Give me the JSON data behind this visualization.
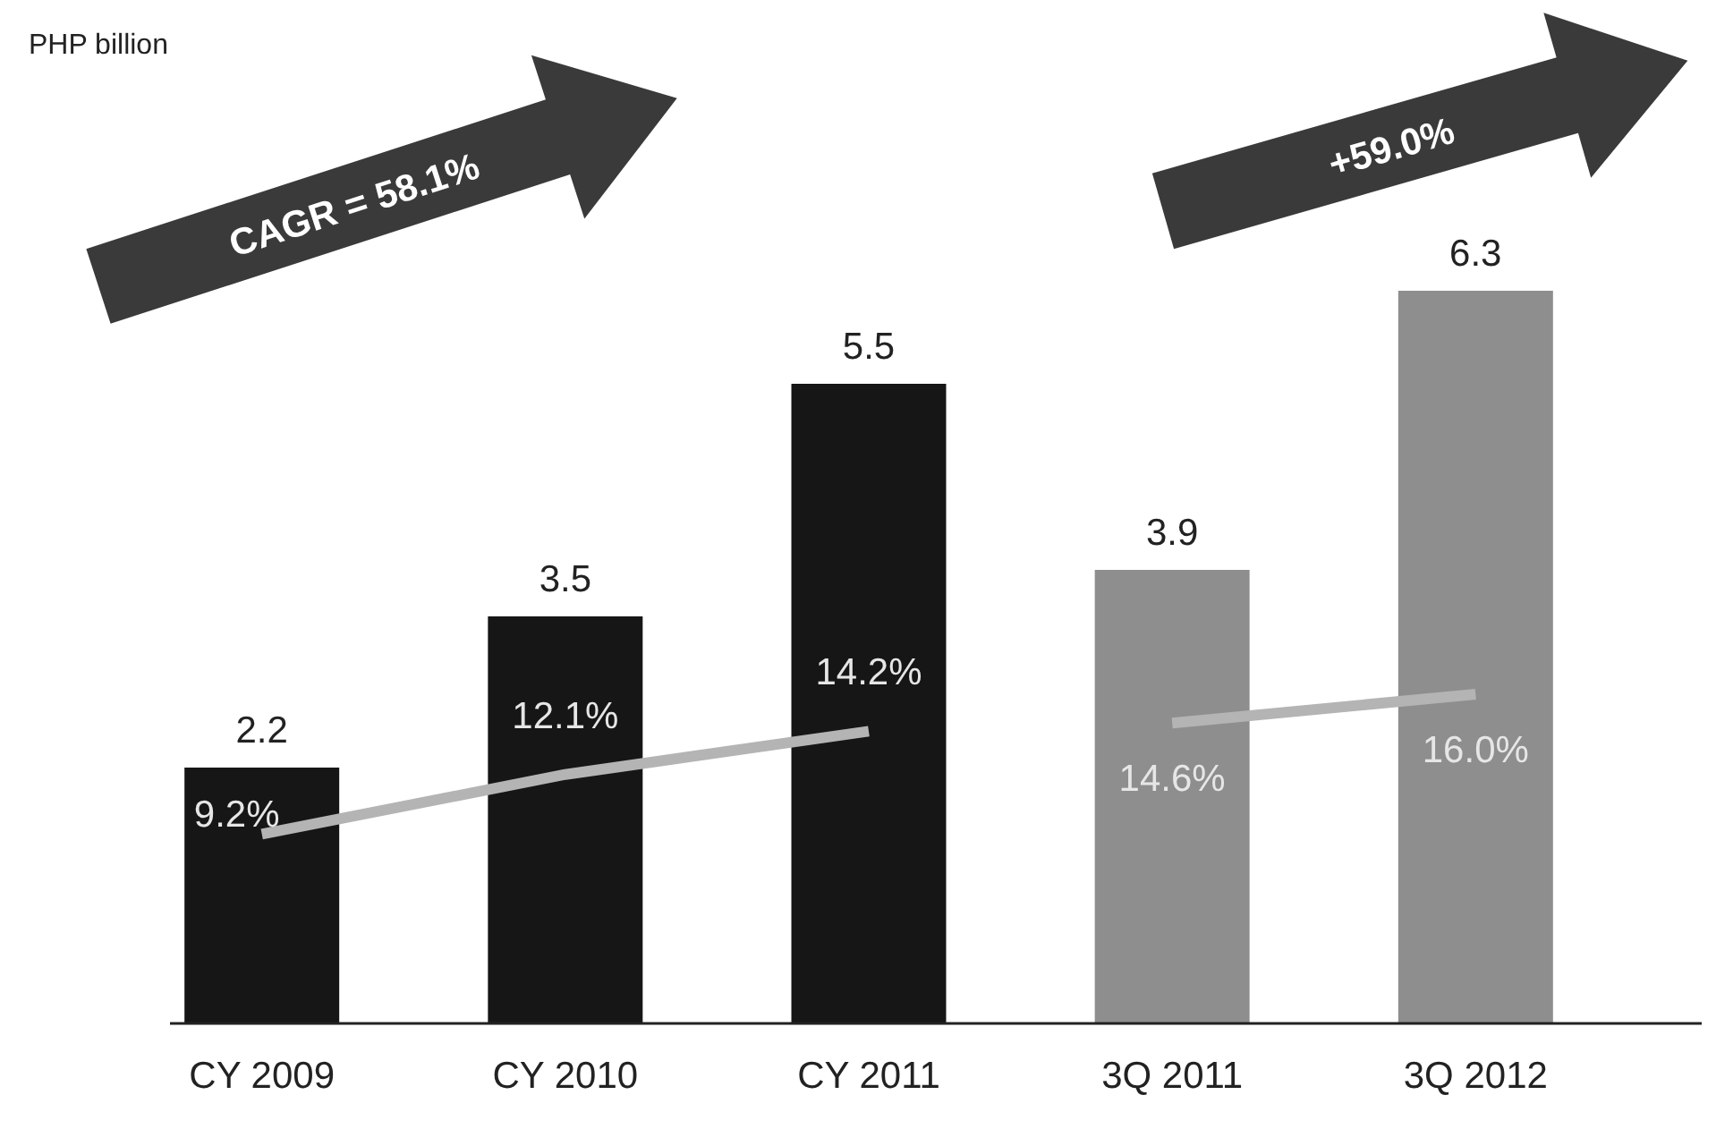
{
  "chart_data": {
    "type": "bar",
    "categories": [
      "CY 2009",
      "CY 2010",
      "CY 2011",
      "3Q 2011",
      "3Q 2012"
    ],
    "tick_labels": "x",
    "data_labels": true,
    "annotations": [
      "PHP billion",
      "CAGR = 58.1%",
      "+59.0%"
    ],
    "series": [
      {
        "colors": [
          "#161616",
          "#161616",
          "#161616",
          "#8e8e8e",
          "#8e8e8e"
        ],
        "values": [
          2.2,
          3.5,
          5.5,
          3.9,
          6.3
        ]
      },
      {
        "type": "line",
        "axis": "y2",
        "color": "#b4b4b4",
        "values": [
          9.2,
          12.1,
          14.2,
          null,
          null
        ],
        "value_labels": [
          "9.2%",
          "12.1%",
          "14.2%",
          null,
          null
        ]
      },
      {
        "type": "line",
        "axis": "y2",
        "color": "#b4b4b4",
        "values": [
          null,
          null,
          null,
          14.6,
          16.0
        ],
        "value_labels": [
          null,
          null,
          null,
          "14.6%",
          "16.0%"
        ]
      }
    ]
  }
}
